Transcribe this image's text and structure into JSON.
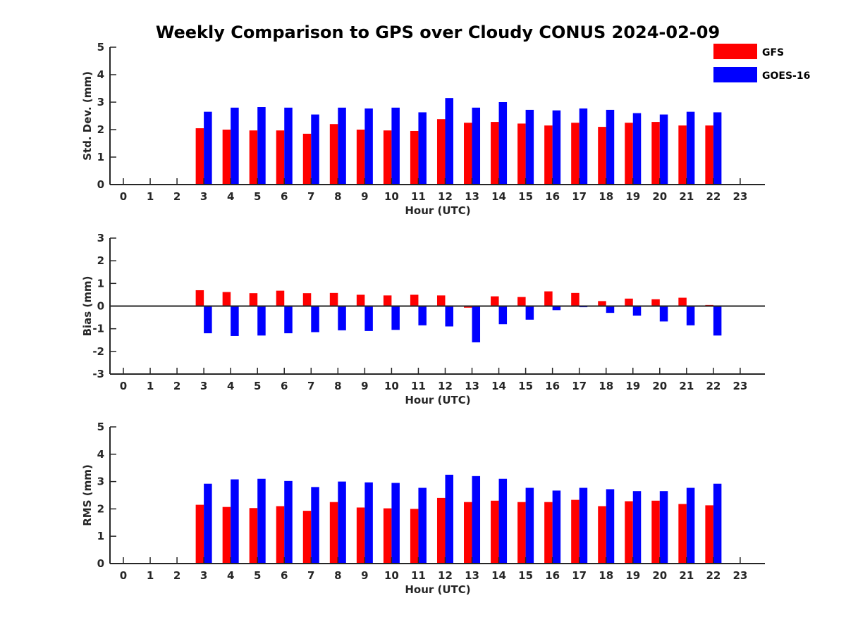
{
  "colors": {
    "gfs": "#ff0000",
    "goes": "#0000ff",
    "axis": "#262626"
  },
  "chart_data": {
    "title": "Weekly Comparison to GPS over Cloudy CONUS 2024-02-09",
    "legend": {
      "placement": "top-right",
      "entries": [
        "GFS",
        "GOES-16"
      ]
    },
    "panels": [
      {
        "type": "bar",
        "ylabel": "Std. Dev. (mm)",
        "xlabel": "Hour (UTC)",
        "ylim": [
          0,
          5
        ],
        "yticks": [
          "0",
          "1",
          "2",
          "3",
          "4",
          "5"
        ],
        "xticks": [
          "0",
          "1",
          "2",
          "3",
          "4",
          "5",
          "6",
          "7",
          "8",
          "9",
          "10",
          "11",
          "12",
          "13",
          "14",
          "15",
          "16",
          "17",
          "18",
          "19",
          "20",
          "21",
          "22",
          "23"
        ],
        "categories": [
          3,
          4,
          5,
          6,
          7,
          8,
          9,
          10,
          11,
          12,
          13,
          14,
          15,
          16,
          17,
          18,
          19,
          20,
          21,
          22
        ],
        "series": [
          {
            "name": "GFS",
            "values": [
              2.05,
              2.0,
              1.97,
              1.97,
              1.85,
              2.2,
              2.0,
              1.97,
              1.95,
              2.38,
              2.25,
              2.28,
              2.22,
              2.15,
              2.25,
              2.1,
              2.25,
              2.28,
              2.15,
              2.15
            ]
          },
          {
            "name": "GOES-16",
            "values": [
              2.65,
              2.8,
              2.82,
              2.8,
              2.55,
              2.8,
              2.77,
              2.8,
              2.63,
              3.15,
              2.8,
              3.0,
              2.72,
              2.7,
              2.77,
              2.72,
              2.6,
              2.55,
              2.65,
              2.63
            ]
          }
        ]
      },
      {
        "type": "bar",
        "ylabel": "Bias (mm)",
        "xlabel": "Hour (UTC)",
        "ylim": [
          -3,
          3
        ],
        "yticks": [
          "-3",
          "-2",
          "-1",
          "0",
          "1",
          "2",
          "3"
        ],
        "xticks": [
          "0",
          "1",
          "2",
          "3",
          "4",
          "5",
          "6",
          "7",
          "8",
          "9",
          "10",
          "11",
          "12",
          "13",
          "14",
          "15",
          "16",
          "17",
          "18",
          "19",
          "20",
          "21",
          "22",
          "23"
        ],
        "categories": [
          3,
          4,
          5,
          6,
          7,
          8,
          9,
          10,
          11,
          12,
          13,
          14,
          15,
          16,
          17,
          18,
          19,
          20,
          21,
          22
        ],
        "series": [
          {
            "name": "GFS",
            "values": [
              0.7,
              0.62,
              0.57,
              0.68,
              0.57,
              0.58,
              0.5,
              0.47,
              0.5,
              0.47,
              -0.07,
              0.43,
              0.4,
              0.65,
              0.58,
              0.22,
              0.33,
              0.3,
              0.37,
              0.05
            ]
          },
          {
            "name": "GOES-16",
            "values": [
              -1.2,
              -1.32,
              -1.3,
              -1.2,
              -1.15,
              -1.07,
              -1.1,
              -1.05,
              -0.85,
              -0.9,
              -1.6,
              -0.8,
              -0.6,
              -0.18,
              -0.05,
              -0.3,
              -0.42,
              -0.68,
              -0.85,
              -1.3
            ]
          }
        ]
      },
      {
        "type": "bar",
        "ylabel": "RMS (mm)",
        "xlabel": "Hour (UTC)",
        "ylim": [
          0,
          5
        ],
        "yticks": [
          "0",
          "1",
          "2",
          "3",
          "4",
          "5"
        ],
        "xticks": [
          "0",
          "1",
          "2",
          "3",
          "4",
          "5",
          "6",
          "7",
          "8",
          "9",
          "10",
          "11",
          "12",
          "13",
          "14",
          "15",
          "16",
          "17",
          "18",
          "19",
          "20",
          "21",
          "22",
          "23"
        ],
        "categories": [
          3,
          4,
          5,
          6,
          7,
          8,
          9,
          10,
          11,
          12,
          13,
          14,
          15,
          16,
          17,
          18,
          19,
          20,
          21,
          22
        ],
        "series": [
          {
            "name": "GFS",
            "values": [
              2.15,
              2.07,
              2.03,
              2.1,
              1.93,
              2.25,
              2.05,
              2.02,
              2.0,
              2.4,
              2.25,
              2.3,
              2.25,
              2.25,
              2.33,
              2.1,
              2.28,
              2.3,
              2.18,
              2.13
            ]
          },
          {
            "name": "GOES-16",
            "values": [
              2.92,
              3.08,
              3.1,
              3.02,
              2.8,
              3.0,
              2.97,
              2.95,
              2.77,
              3.25,
              3.2,
              3.1,
              2.77,
              2.67,
              2.77,
              2.72,
              2.65,
              2.65,
              2.77,
              2.92
            ]
          }
        ]
      }
    ]
  }
}
